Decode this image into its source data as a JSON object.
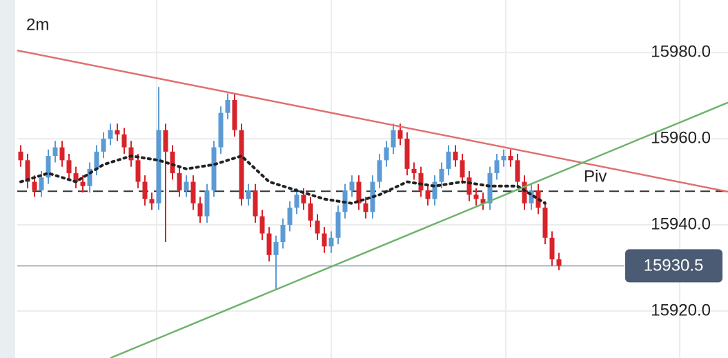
{
  "chart_data": {
    "type": "candlestick",
    "title": "2m",
    "xlim": [
      -0.5,
      102.5
    ],
    "ylim": [
      15909.1,
      15992.2
    ],
    "yticks": [
      {
        "value": 15980,
        "label": "15980.0"
      },
      {
        "value": 15960,
        "label": "15960.0"
      },
      {
        "value": 15940,
        "label": "15940.0"
      },
      {
        "value": 15920,
        "label": "15920.0"
      }
    ],
    "grid": true,
    "up_color": "#5b9bd5",
    "down_color": "#d9232a",
    "open": [
      15957,
      15955,
      15950,
      15948,
      15951,
      15956,
      15958,
      15955,
      15952,
      15950,
      15949,
      15953,
      15957,
      15960,
      15962,
      15961,
      15958,
      15955,
      15950,
      15946,
      15945,
      15962,
      15957,
      15952,
      15948,
      15950,
      15945,
      15942,
      15948,
      15958,
      15966,
      15969,
      15962,
      15946,
      15948,
      15942,
      15938,
      15933,
      15936,
      15940,
      15944,
      15947,
      15945,
      15941,
      15938,
      15935,
      15937,
      15943,
      15948,
      15950,
      15945,
      15943,
      15950,
      15955,
      15958,
      15962,
      15960,
      15953,
      15952,
      15948,
      15946,
      15950,
      15953,
      15957,
      15955,
      15951,
      15947,
      15946,
      15945,
      15952,
      15955,
      15956,
      15955,
      15950,
      15945,
      15948,
      15944,
      15937,
      15932
    ],
    "high": [
      15958.5,
      15956.5,
      15951.5,
      15952.5,
      15957.5,
      15959.5,
      15959.5,
      15956.5,
      15953.5,
      15951.5,
      15954.5,
      15958.5,
      15961.5,
      15963.5,
      15963.5,
      15962.5,
      15959.5,
      15956.5,
      15951.5,
      15947.5,
      15972,
      15963.5,
      15958.5,
      15953.5,
      15951.5,
      15951.5,
      15946.5,
      15949.5,
      15959.5,
      15967.5,
      15970.5,
      15970.5,
      15963.5,
      15949.5,
      15949.5,
      15943.5,
      15939.5,
      15937.5,
      15941.5,
      15945.5,
      15948.5,
      15948.5,
      15946.5,
      15942.5,
      15939.5,
      15938.5,
      15944.5,
      15949.5,
      15951.5,
      15951.5,
      15946.5,
      15951.5,
      15956.5,
      15959.5,
      15963.5,
      15963.5,
      15961.5,
      15954.5,
      15953.5,
      15949.5,
      15951.5,
      15954.5,
      15958.5,
      15958.5,
      15956.5,
      15952.5,
      15948.5,
      15947.5,
      15953.5,
      15956.5,
      15957.5,
      15957.5,
      15956.5,
      15951.5,
      15949.5,
      15949.5,
      15945.5,
      15938.5,
      15933.5
    ],
    "low": [
      15953.5,
      15948.5,
      15946.5,
      15946.5,
      15949.5,
      15954.5,
      15953.5,
      15950.5,
      15948.5,
      15947.5,
      15947.5,
      15951.5,
      15955.5,
      15958.5,
      15959.5,
      15956.5,
      15953.5,
      15948.5,
      15944.5,
      15943.5,
      15943.5,
      15936,
      15950.5,
      15946.5,
      15946.5,
      15943.5,
      15940.5,
      15940.5,
      15946.5,
      15956.5,
      15964.5,
      15960.5,
      15944.5,
      15944.5,
      15940.5,
      15936.5,
      15931.5,
      15925,
      15934.5,
      15938.5,
      15942.5,
      15943.5,
      15939.5,
      15936.5,
      15933.5,
      15933.5,
      15935.5,
      15941.5,
      15946.5,
      15943.5,
      15941.5,
      15941.5,
      15948.5,
      15953.5,
      15956.5,
      15958.5,
      15951.5,
      15950.5,
      15946.5,
      15944.5,
      15944.5,
      15948.5,
      15951.5,
      15953.5,
      15949.5,
      15945.5,
      15944.5,
      15943.5,
      15943.5,
      15950.5,
      15953.5,
      15953.5,
      15948.5,
      15943.5,
      15943.5,
      15942.5,
      15935.5,
      15930.5,
      15929.5
    ],
    "close": [
      15955,
      15950,
      15948,
      15951,
      15956,
      15958,
      15955,
      15952,
      15950,
      15949,
      15953,
      15957,
      15960,
      15962,
      15961,
      15958,
      15955,
      15950,
      15946,
      15945,
      15962,
      15957,
      15952,
      15948,
      15950,
      15945,
      15942,
      15948,
      15958,
      15966,
      15969,
      15962,
      15946,
      15948,
      15942,
      15938,
      15933,
      15936,
      15940,
      15944,
      15947,
      15945,
      15941,
      15938,
      15935,
      15937,
      15943,
      15948,
      15950,
      15945,
      15943,
      15950,
      15955,
      15958,
      15962,
      15960,
      15953,
      15952,
      15948,
      15946,
      15950,
      15953,
      15957,
      15955,
      15951,
      15947,
      15946,
      15945,
      15952,
      15955,
      15956,
      15955,
      15950,
      15945,
      15948,
      15944,
      15937,
      15932,
      15930.5
    ],
    "moving_average": {
      "color": "#222222",
      "x": [
        0,
        4,
        8,
        12,
        16,
        20,
        24,
        28,
        32,
        36,
        40,
        44,
        48,
        52,
        56,
        60,
        64,
        68,
        72,
        76
      ],
      "values": [
        15950,
        15952,
        15950,
        15954,
        15956,
        15955,
        15953,
        15954,
        15956,
        15950,
        15948,
        15946,
        15945,
        15947,
        15950,
        15949,
        15950,
        15949,
        15949,
        15945
      ]
    },
    "trendlines": [
      {
        "color": "#e07070",
        "x": [
          -0.5,
          102.5
        ],
        "values": [
          15980.5,
          15947.7
        ]
      },
      {
        "color": "#6db36d",
        "x": [
          13,
          102.5
        ],
        "values": [
          15909.1,
          15968.4
        ]
      }
    ],
    "pivot": {
      "label": "Piv",
      "value": 15947.8
    },
    "last_price": {
      "value": 15930.5,
      "label": "15930.5"
    }
  }
}
